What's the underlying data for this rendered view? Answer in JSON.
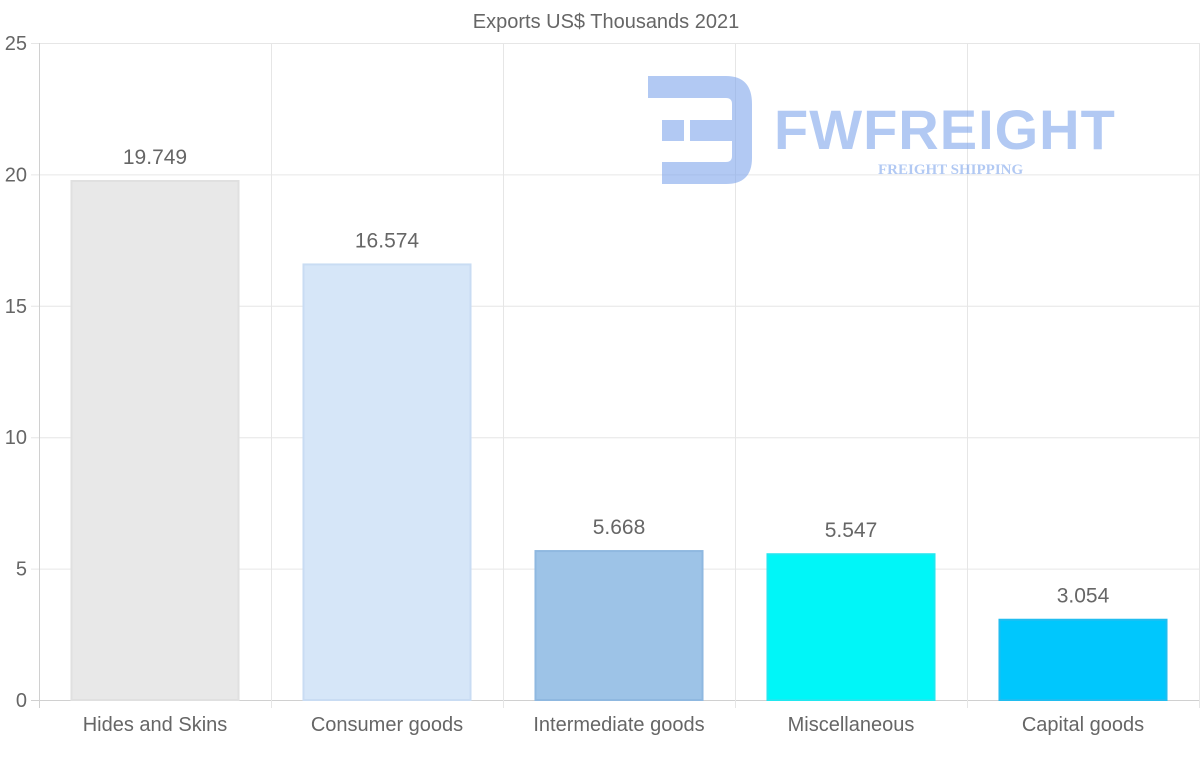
{
  "chart_data": {
    "type": "bar",
    "title": "Exports US$ Thousands 2021",
    "categories": [
      "Hides and Skins",
      "Consumer goods",
      "Intermediate goods",
      "Miscellaneous",
      "Capital goods"
    ],
    "values": [
      19.749,
      16.574,
      5.668,
      5.547,
      3.054
    ],
    "value_labels": [
      "19.749",
      "16.574",
      "5.668",
      "5.547",
      "3.054"
    ],
    "bar_colors": [
      "#e8e8e8",
      "#d6e6f8",
      "#9dc3e7",
      "#00f6f8",
      "#00c7fd"
    ],
    "bar_edge_colors": [
      "#e0e0e0",
      "#c9dcf3",
      "#8fb8e0",
      "#20e8f0",
      "#20bdf0"
    ],
    "ylim": [
      0,
      25
    ],
    "yticks": [
      0,
      5,
      10,
      15,
      20,
      25
    ],
    "ytick_labels": [
      "0",
      "5",
      "10",
      "15",
      "20",
      "25"
    ],
    "xlabel": "",
    "ylabel": "",
    "grid": true
  },
  "watermark": {
    "name": "FWFREIGHT",
    "tagline": "FREIGHT SHIPPING",
    "color": "#7fa6ec"
  }
}
